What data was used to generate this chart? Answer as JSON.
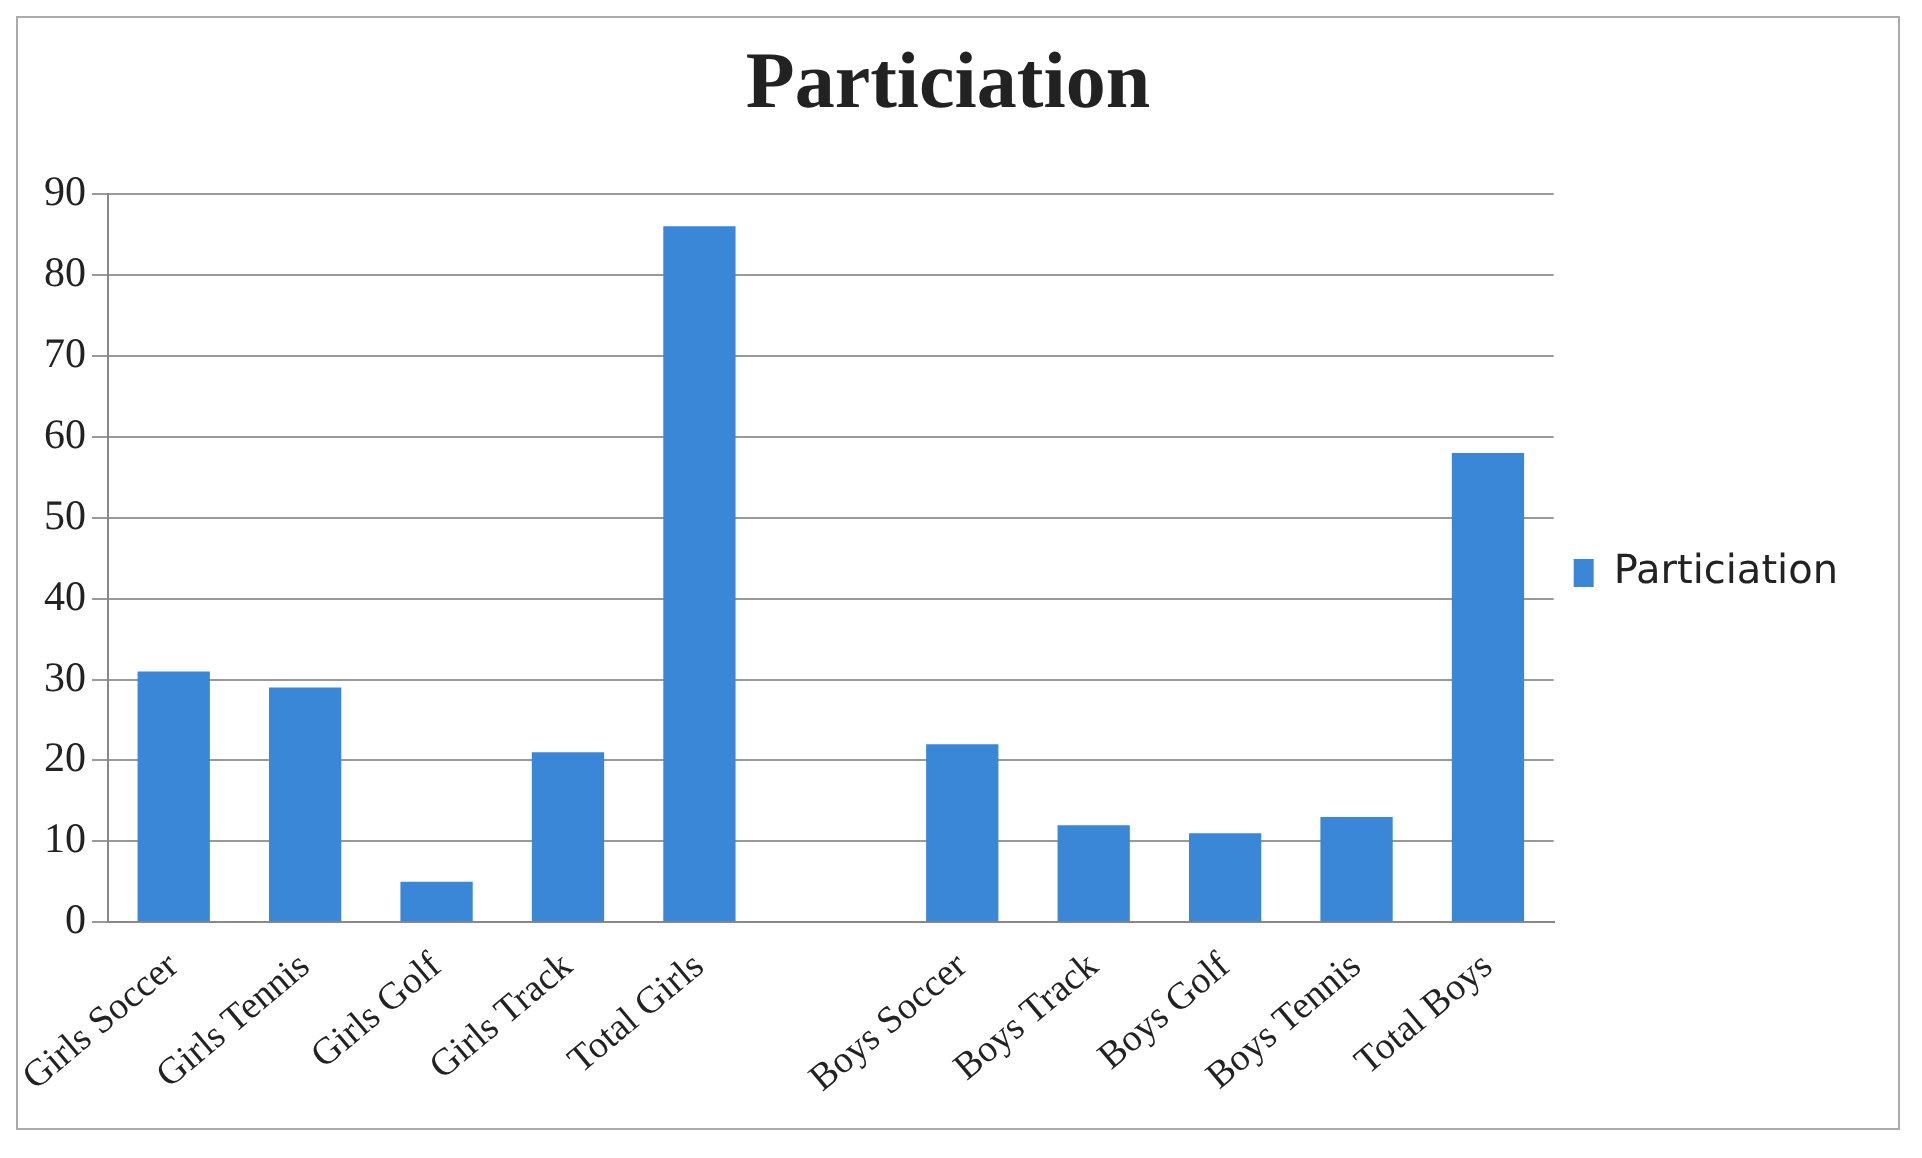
{
  "chart_data": {
    "type": "bar",
    "title": "Particiation",
    "categories": [
      "Girls Soccer",
      "Girls Tennis",
      "Girls Golf",
      "Girls Track",
      "Total Girls",
      null,
      "Boys Soccer",
      "Boys Track",
      "Boys Golf",
      "Boys Tennis",
      "Total Boys"
    ],
    "series": [
      {
        "name": "Particiation",
        "color": "#3a87d8",
        "values": [
          31,
          29,
          5,
          21,
          86,
          null,
          22,
          12,
          11,
          13,
          58
        ]
      }
    ],
    "ylim": [
      0,
      90
    ],
    "yticks": [
      0,
      10,
      20,
      30,
      40,
      50,
      60,
      70,
      80,
      90
    ],
    "grid": "y",
    "legend": "right"
  }
}
